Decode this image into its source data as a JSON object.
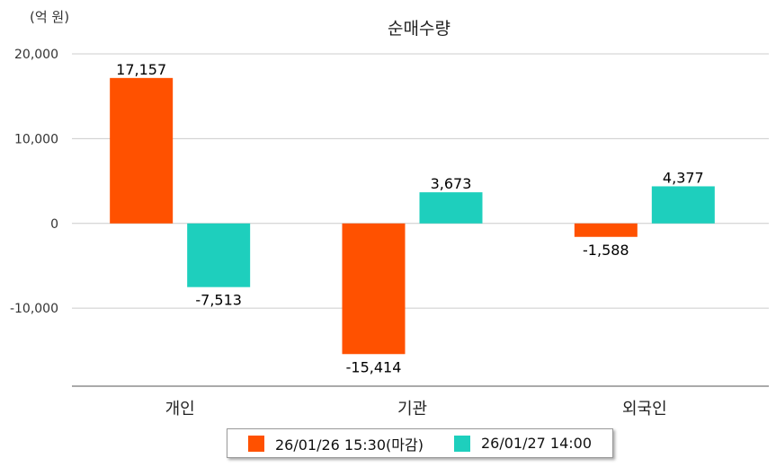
{
  "chart_data": {
    "type": "bar",
    "title": "순매수량",
    "unit_label": "(억 원)",
    "categories": [
      "개인",
      "기관",
      "외국인"
    ],
    "series": [
      {
        "name": "26/01/26 15:30(마감)",
        "color": "#ff5100",
        "values": [
          17157,
          -15414,
          -1588
        ],
        "labels": [
          "17,157",
          "-15,414",
          "-1,588"
        ]
      },
      {
        "name": "26/01/27 14:00",
        "color": "#1ecfbd",
        "values": [
          -7513,
          3673,
          4377
        ],
        "labels": [
          "-7,513",
          "3,673",
          "4,377"
        ]
      }
    ],
    "yticks": [
      20000,
      10000,
      0,
      -10000
    ],
    "ytick_labels": [
      "20,000",
      "10,000",
      "0",
      "-10,000"
    ],
    "ylim": [
      -19200,
      20000
    ],
    "grid": true,
    "legend_position": "bottom"
  }
}
